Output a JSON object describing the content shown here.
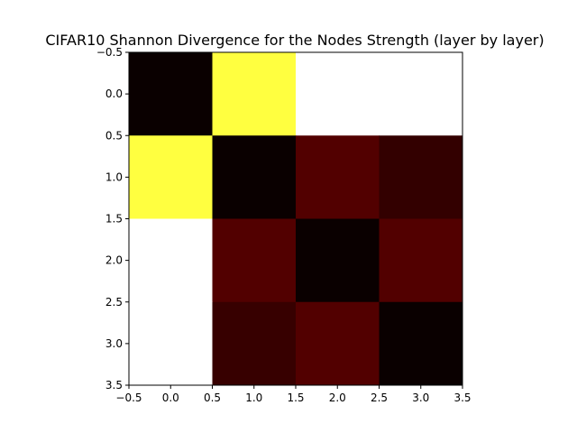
{
  "chart_data": {
    "type": "heatmap",
    "title": "CIFAR10 Shannon Divergence for the Nodes Strength (layer by layer)",
    "xlabel": "",
    "ylabel": "",
    "colormap": "hot",
    "xlim": [
      -0.5,
      3.5
    ],
    "ylim": [
      3.5,
      -0.5
    ],
    "rows": [
      0,
      1,
      2,
      3
    ],
    "cols": [
      0,
      1,
      2,
      3
    ],
    "values": [
      [
        0.0,
        0.78,
        1.0,
        1.0
      ],
      [
        0.78,
        0.0,
        0.1,
        0.06
      ],
      [
        1.0,
        0.1,
        0.0,
        0.1
      ],
      [
        1.0,
        0.07,
        0.1,
        0.0
      ]
    ],
    "cell_colors": [
      [
        "#0a0000",
        "#ffff40",
        "#ffffff",
        "#ffffff"
      ],
      [
        "#ffff40",
        "#0a0000",
        "#520000",
        "#330000"
      ],
      [
        "#ffffff",
        "#520000",
        "#0a0000",
        "#520000"
      ],
      [
        "#ffffff",
        "#370000",
        "#520000",
        "#0a0000"
      ]
    ],
    "xticks": [
      "−0.5",
      "0.0",
      "0.5",
      "1.0",
      "1.5",
      "2.0",
      "2.5",
      "3.0",
      "3.5"
    ],
    "yticks": [
      "−0.5",
      "0.0",
      "0.5",
      "1.0",
      "1.5",
      "2.0",
      "2.5",
      "3.0",
      "3.5"
    ],
    "tick_values": [
      -0.5,
      0.0,
      0.5,
      1.0,
      1.5,
      2.0,
      2.5,
      3.0,
      3.5
    ],
    "grid": false,
    "legend": "none"
  }
}
